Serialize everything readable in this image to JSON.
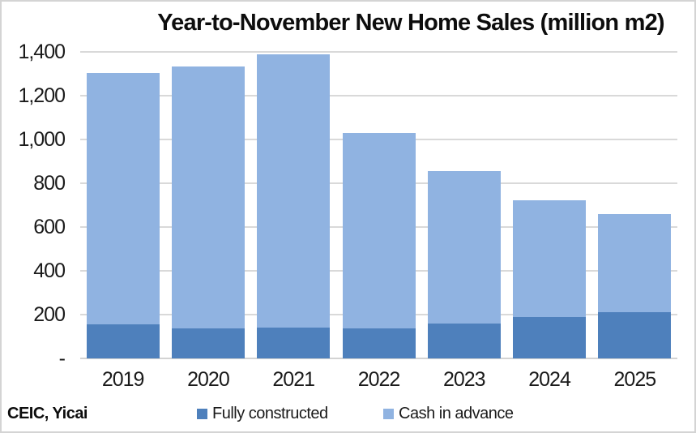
{
  "chart_data": {
    "type": "bar",
    "stacked": true,
    "title": "Year-to-November New Home Sales (million m2)",
    "categories": [
      "2019",
      "2020",
      "2021",
      "2022",
      "2023",
      "2024",
      "2025"
    ],
    "series": [
      {
        "name": "Fully constructed",
        "color": "#4E80BC",
        "values": [
          157,
          137,
          139,
          138,
          158,
          189,
          210
        ]
      },
      {
        "name": "Cash in advance",
        "color": "#90B3E1",
        "values": [
          1148,
          1195,
          1251,
          890,
          699,
          532,
          450
        ]
      }
    ],
    "totals": [
      1305,
      1332,
      1390,
      1028,
      857,
      721,
      660
    ],
    "xlabel": "",
    "ylabel": "",
    "ylim": [
      0,
      1400
    ],
    "ytick_interval": 200,
    "ytick_labels": [
      "-",
      "200",
      "400",
      "600",
      "800",
      "1,000",
      "1,200",
      "1,400"
    ],
    "grid": "horizontal-only",
    "gridline_color": "#D9D9D9",
    "legend_position": "bottom",
    "source": "CEIC, Yicai"
  }
}
